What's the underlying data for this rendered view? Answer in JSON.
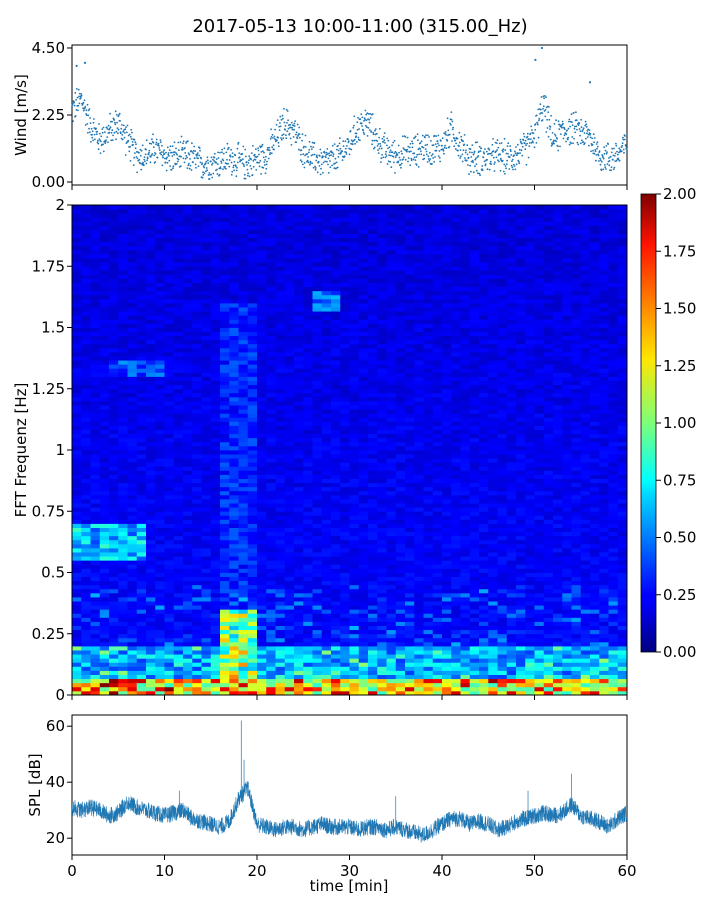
{
  "chart_data": [
    {
      "type": "scatter",
      "panel": "wind",
      "title": "2017-05-13 10:00-11:00 (315.00_Hz)",
      "ylabel": "Wind [m/s]",
      "xlim": [
        0,
        60
      ],
      "ylim": [
        -0.1,
        4.6
      ],
      "yticks": [
        "0.00",
        "2.25",
        "4.50"
      ],
      "ytick_values": [
        0,
        2.25,
        4.5
      ],
      "marker_color": "#1f77b4",
      "envelope": {
        "x": [
          0,
          1,
          2,
          3,
          4,
          5,
          6,
          7,
          8,
          9,
          10,
          11,
          12,
          13,
          14,
          15,
          16,
          17,
          18,
          19,
          20,
          21,
          22,
          23,
          24,
          25,
          26,
          27,
          28,
          29,
          30,
          31,
          32,
          33,
          34,
          35,
          36,
          37,
          38,
          39,
          40,
          41,
          42,
          43,
          44,
          45,
          46,
          47,
          48,
          49,
          50,
          51,
          52,
          53,
          54,
          55,
          56,
          57,
          58,
          59,
          60
        ],
        "mean": [
          2.4,
          2.8,
          1.9,
          1.4,
          1.7,
          2.0,
          1.4,
          0.9,
          0.9,
          1.1,
          0.9,
          0.8,
          0.9,
          0.8,
          0.6,
          0.6,
          0.7,
          0.8,
          0.7,
          0.6,
          0.8,
          0.9,
          1.4,
          2.0,
          1.7,
          1.1,
          0.8,
          0.7,
          0.7,
          0.9,
          1.3,
          1.9,
          2.0,
          1.4,
          1.0,
          0.9,
          1.0,
          1.0,
          1.2,
          1.1,
          1.2,
          1.8,
          1.2,
          0.8,
          0.8,
          0.8,
          0.9,
          0.8,
          0.9,
          1.1,
          1.6,
          2.6,
          1.4,
          1.7,
          1.8,
          1.7,
          1.5,
          0.9,
          0.8,
          0.9,
          1.3
        ],
        "spread": 0.45
      },
      "peaks": [
        [
          0.5,
          3.9
        ],
        [
          1.4,
          4.0
        ],
        [
          50.1,
          4.1
        ],
        [
          50.8,
          4.5
        ],
        [
          56.0,
          3.35
        ]
      ]
    },
    {
      "type": "heatmap",
      "panel": "spectrogram",
      "ylabel": "FFT Frequenz [Hz]",
      "xlim": [
        0,
        60
      ],
      "ylim": [
        0,
        2
      ],
      "yticks": [
        "0",
        "0.25",
        "0.5",
        "0.75",
        "1",
        "1.25",
        "1.5",
        "1.75",
        "2"
      ],
      "ytick_values": [
        0,
        0.25,
        0.5,
        0.75,
        1,
        1.25,
        1.5,
        1.75,
        2
      ],
      "colormap": "jet",
      "colorbar": {
        "vmin": 0,
        "vmax": 2,
        "ticks": [
          "0.00",
          "0.25",
          "0.50",
          "0.75",
          "1.00",
          "1.25",
          "1.50",
          "1.75",
          "2.00"
        ],
        "tick_values": [
          0,
          0.25,
          0.5,
          0.75,
          1,
          1.25,
          1.5,
          1.75,
          2
        ]
      },
      "time_columns": 60,
      "frequency_rows": 120,
      "base_level": 0.12,
      "features": [
        {
          "t": [
            16,
            20
          ],
          "f": [
            0.0,
            0.35
          ],
          "level": 1.1
        },
        {
          "t": [
            16,
            20
          ],
          "f": [
            0.35,
            1.6
          ],
          "level": 0.35
        },
        {
          "t": [
            0,
            8
          ],
          "f": [
            0.55,
            0.7
          ],
          "level": 0.7
        },
        {
          "t": [
            4,
            10
          ],
          "f": [
            1.3,
            1.37
          ],
          "level": 0.45
        },
        {
          "t": [
            26,
            29
          ],
          "f": [
            1.56,
            1.65
          ],
          "level": 0.5
        },
        {
          "t": [
            0,
            60
          ],
          "f": [
            0.0,
            0.06
          ],
          "level": 1.5
        },
        {
          "t": [
            0,
            60
          ],
          "f": [
            0.06,
            0.2
          ],
          "level": 0.65
        }
      ]
    },
    {
      "type": "line",
      "panel": "spl",
      "xlabel": "time [min]",
      "ylabel": "SPL [dB]",
      "xlim": [
        0,
        60
      ],
      "ylim": [
        14,
        64
      ],
      "xticks": [
        "0",
        "10",
        "20",
        "30",
        "40",
        "50",
        "60"
      ],
      "xtick_values": [
        0,
        10,
        20,
        30,
        40,
        50,
        60
      ],
      "yticks": [
        "20",
        "40",
        "60"
      ],
      "ytick_values": [
        20,
        40,
        60
      ],
      "line_color": "#1f77b4",
      "envelope": {
        "x": [
          0,
          1,
          2,
          3,
          4,
          5,
          6,
          7,
          8,
          9,
          10,
          11,
          12,
          13,
          14,
          15,
          16,
          17,
          18,
          19,
          20,
          21,
          22,
          23,
          24,
          25,
          26,
          27,
          28,
          29,
          30,
          31,
          32,
          33,
          34,
          35,
          36,
          37,
          38,
          39,
          40,
          41,
          42,
          43,
          44,
          45,
          46,
          47,
          48,
          49,
          50,
          51,
          52,
          53,
          54,
          55,
          56,
          57,
          58,
          59,
          60
        ],
        "mean": [
          31,
          30,
          31,
          30,
          28,
          29,
          33,
          31,
          30,
          29,
          28,
          29,
          30,
          27,
          26,
          25,
          24,
          26,
          34,
          38,
          25,
          24,
          23,
          24,
          24,
          23,
          24,
          25,
          24,
          24,
          24,
          23,
          24,
          24,
          23,
          24,
          23,
          22,
          21,
          23,
          25,
          27,
          27,
          25,
          26,
          25,
          23,
          24,
          26,
          27,
          28,
          29,
          28,
          29,
          32,
          28,
          27,
          26,
          24,
          27,
          29
        ],
        "spread": 3
      },
      "peaks": [
        [
          18.3,
          62
        ],
        [
          18.6,
          48
        ],
        [
          11.6,
          37
        ],
        [
          54.0,
          43
        ],
        [
          35.0,
          35
        ],
        [
          49.3,
          37
        ]
      ]
    }
  ],
  "figure": {
    "title": "2017-05-13 10:00-11:00 (315.00_Hz)"
  }
}
